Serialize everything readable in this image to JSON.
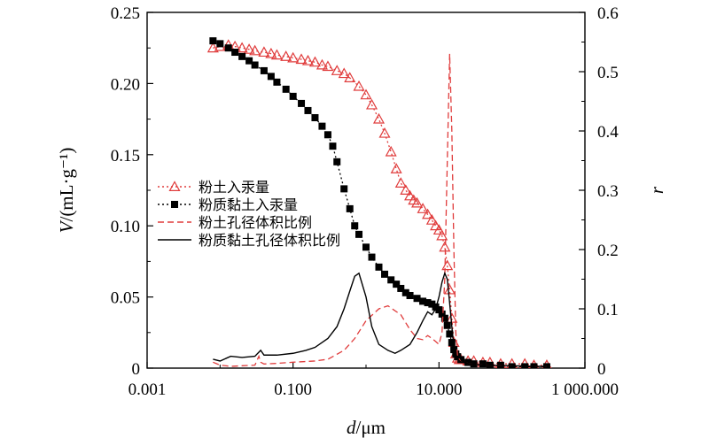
{
  "chart_data": {
    "type": "line",
    "xscale": "log",
    "xlim": [
      0.001,
      1000
    ],
    "ylim_left": [
      0,
      0.25
    ],
    "ylim_right": [
      0,
      0.6
    ],
    "xticks": [
      0.001,
      0.1,
      10,
      1000
    ],
    "xtick_labels": [
      "0.001",
      "0.100",
      "10.000",
      "1 000.000"
    ],
    "yticks_left": [
      0,
      0.05,
      0.1,
      0.15,
      0.2,
      0.25
    ],
    "ytick_labels_left": [
      "0",
      "0.05",
      "0.10",
      "0.15",
      "0.20",
      "0.25"
    ],
    "yticks_right": [
      0,
      0.1,
      0.2,
      0.3,
      0.4,
      0.5,
      0.6
    ],
    "ytick_labels_right": [
      "0",
      "0.1",
      "0.2",
      "0.3",
      "0.4",
      "0.5",
      "0.6"
    ],
    "xlabel_italic": "d",
    "xlabel_rest": "/μm",
    "ylabel_italic": "V",
    "ylabel_rest": "/(mL·g⁻¹)",
    "ylabel_right": "r",
    "legend_position": "center-left",
    "series": [
      {
        "name": "粉土入汞量",
        "axis": "left",
        "color": "#e03c3c",
        "marker": "triangle-open",
        "line": "dotted",
        "x": [
          0.008,
          0.01,
          0.013,
          0.016,
          0.02,
          0.025,
          0.03,
          0.04,
          0.05,
          0.06,
          0.08,
          0.1,
          0.13,
          0.16,
          0.2,
          0.25,
          0.3,
          0.4,
          0.5,
          0.6,
          0.8,
          1,
          1.2,
          1.5,
          1.8,
          2.2,
          2.6,
          3,
          3.5,
          4,
          4.5,
          5,
          6,
          7,
          8,
          9,
          10,
          11,
          12,
          13,
          14,
          15,
          16,
          17,
          18,
          19,
          20,
          25,
          30,
          40,
          50,
          70,
          100,
          150,
          200,
          300
        ],
        "y": [
          0.225,
          0.226,
          0.227,
          0.226,
          0.225,
          0.224,
          0.223,
          0.222,
          0.221,
          0.22,
          0.219,
          0.218,
          0.217,
          0.216,
          0.215,
          0.213,
          0.212,
          0.209,
          0.207,
          0.204,
          0.198,
          0.192,
          0.185,
          0.175,
          0.165,
          0.152,
          0.14,
          0.13,
          0.125,
          0.121,
          0.118,
          0.116,
          0.112,
          0.108,
          0.104,
          0.1,
          0.097,
          0.093,
          0.085,
          0.072,
          0.055,
          0.035,
          0.018,
          0.01,
          0.007,
          0.006,
          0.006,
          0.005,
          0.005,
          0.004,
          0.004,
          0.003,
          0.003,
          0.003,
          0.002,
          0.002
        ]
      },
      {
        "name": "粉质黏土入汞量",
        "axis": "left",
        "color": "#000000",
        "marker": "square-filled",
        "line": "dotted",
        "x": [
          0.008,
          0.01,
          0.013,
          0.016,
          0.02,
          0.025,
          0.03,
          0.04,
          0.05,
          0.06,
          0.08,
          0.1,
          0.13,
          0.16,
          0.2,
          0.25,
          0.3,
          0.35,
          0.4,
          0.5,
          0.6,
          0.7,
          0.8,
          1,
          1.2,
          1.5,
          1.8,
          2.2,
          2.6,
          3,
          3.5,
          4,
          5,
          6,
          7,
          8,
          9,
          10,
          11,
          12,
          13,
          14,
          15,
          16,
          17,
          18,
          20,
          25,
          30,
          40,
          50,
          70,
          100,
          150,
          200,
          300
        ],
        "y": [
          0.23,
          0.228,
          0.225,
          0.222,
          0.219,
          0.216,
          0.213,
          0.209,
          0.205,
          0.201,
          0.196,
          0.191,
          0.186,
          0.181,
          0.176,
          0.17,
          0.164,
          0.156,
          0.145,
          0.126,
          0.112,
          0.1,
          0.094,
          0.085,
          0.078,
          0.071,
          0.066,
          0.062,
          0.059,
          0.056,
          0.053,
          0.051,
          0.049,
          0.047,
          0.046,
          0.045,
          0.043,
          0.041,
          0.038,
          0.035,
          0.03,
          0.024,
          0.018,
          0.013,
          0.01,
          0.008,
          0.006,
          0.004,
          0.003,
          0.003,
          0.002,
          0.002,
          0.001,
          0.001,
          0.001,
          0.001
        ]
      },
      {
        "name": "粉土孔径体积比例",
        "axis": "right",
        "color": "#e03c3c",
        "marker": "none",
        "line": "dashed",
        "x": [
          0.008,
          0.01,
          0.014,
          0.02,
          0.03,
          0.034,
          0.036,
          0.04,
          0.06,
          0.1,
          0.2,
          0.3,
          0.5,
          0.7,
          1,
          1.5,
          2,
          3,
          4,
          5,
          6,
          7,
          8,
          9,
          10,
          11,
          12,
          13,
          14,
          15,
          16,
          17,
          18,
          20,
          25,
          30,
          50,
          100,
          200,
          300
        ],
        "y": [
          0.01,
          0.005,
          0.003,
          0.004,
          0.005,
          0.02,
          0.01,
          0.007,
          0.008,
          0.01,
          0.012,
          0.015,
          0.03,
          0.05,
          0.08,
          0.1,
          0.105,
          0.09,
          0.065,
          0.05,
          0.048,
          0.055,
          0.05,
          0.045,
          0.04,
          0.06,
          0.15,
          0.35,
          0.53,
          0.4,
          0.2,
          0.06,
          0.02,
          0.01,
          0.008,
          0.006,
          0.005,
          0.004,
          0.003,
          0.003
        ]
      },
      {
        "name": "粉质黏土孔径体积比例",
        "axis": "right",
        "color": "#000000",
        "marker": "none",
        "line": "solid",
        "x": [
          0.008,
          0.01,
          0.014,
          0.02,
          0.03,
          0.036,
          0.04,
          0.06,
          0.1,
          0.15,
          0.2,
          0.3,
          0.4,
          0.5,
          0.6,
          0.7,
          0.8,
          1,
          1.2,
          1.5,
          2,
          2.5,
          3,
          4,
          5,
          6,
          7,
          8,
          9,
          10,
          11,
          12,
          13,
          14,
          15,
          16,
          18,
          20,
          25,
          30,
          50,
          100,
          200,
          300
        ],
        "y": [
          0.015,
          0.012,
          0.02,
          0.018,
          0.02,
          0.03,
          0.022,
          0.022,
          0.025,
          0.03,
          0.035,
          0.05,
          0.07,
          0.1,
          0.13,
          0.155,
          0.16,
          0.12,
          0.07,
          0.04,
          0.03,
          0.025,
          0.03,
          0.04,
          0.06,
          0.08,
          0.095,
          0.09,
          0.1,
          0.12,
          0.145,
          0.16,
          0.15,
          0.11,
          0.07,
          0.035,
          0.015,
          0.01,
          0.008,
          0.006,
          0.005,
          0.004,
          0.003,
          0.003
        ]
      }
    ]
  }
}
